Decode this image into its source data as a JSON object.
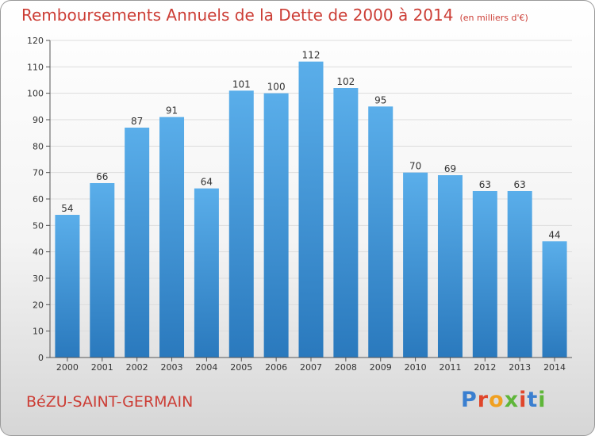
{
  "title": "Remboursements Annuels de la Dette de 2000 à 2014",
  "unit": "(en milliers d'€)",
  "commune": "BéZU-SAINT-GERMAIN",
  "logo": "Proxiti",
  "colors": {
    "title": "#cc3d35",
    "bar_top": "#5aaeea",
    "bar_bottom": "#2a79bd"
  },
  "chart_data": {
    "type": "bar",
    "categories": [
      "2000",
      "2001",
      "2002",
      "2003",
      "2004",
      "2005",
      "2006",
      "2007",
      "2008",
      "2009",
      "2010",
      "2011",
      "2012",
      "2013",
      "2014"
    ],
    "values": [
      54,
      66,
      87,
      91,
      64,
      101,
      100,
      112,
      102,
      95,
      70,
      69,
      63,
      63,
      44
    ],
    "ylim": [
      0,
      120
    ],
    "yticks": [
      0,
      10,
      20,
      30,
      40,
      50,
      60,
      70,
      80,
      90,
      100,
      110,
      120
    ],
    "grid": true,
    "title": "Remboursements Annuels de la Dette de 2000 à 2014",
    "xlabel": "",
    "ylabel": ""
  }
}
